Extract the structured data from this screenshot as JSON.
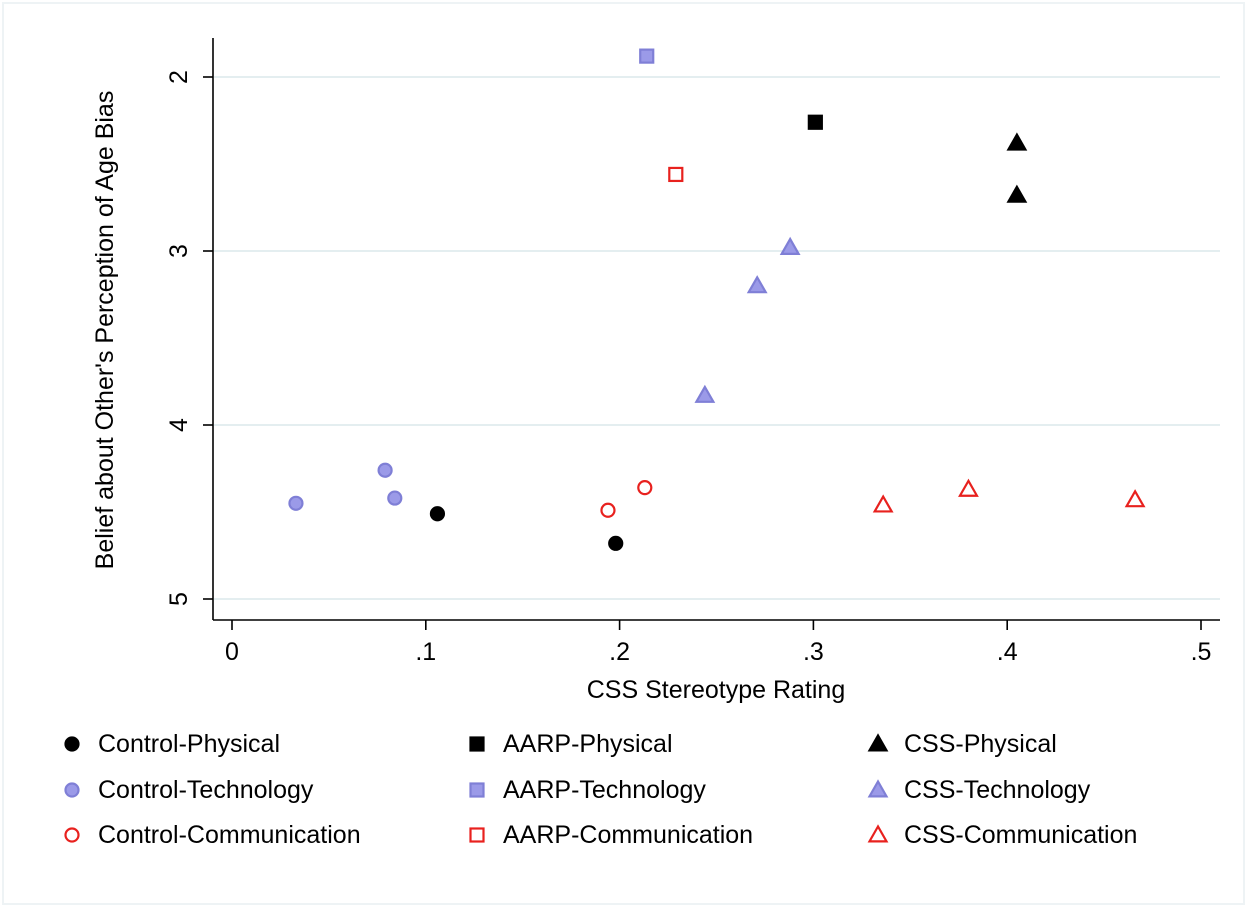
{
  "chart_data": {
    "type": "scatter",
    "title": "",
    "xlabel": "CSS Stereotype Rating",
    "ylabel": "Belief about Other's Perception of Age Bias",
    "xlim": [
      0,
      0.5
    ],
    "ylim": [
      2,
      5
    ],
    "y_reversed": true,
    "x_ticks": [
      0,
      0.1,
      0.2,
      0.3,
      0.4,
      0.5
    ],
    "x_tick_labels": [
      "0",
      ".1",
      ".2",
      ".3",
      ".4",
      ".5"
    ],
    "y_ticks": [
      2,
      3,
      4,
      5
    ],
    "y_tick_labels": [
      "2",
      "3",
      "4",
      "5"
    ],
    "grid": true,
    "legend_position": "bottom",
    "series": [
      {
        "name": "Control-Physical",
        "marker": "circle",
        "fill": "#000000",
        "stroke": "#000000",
        "points": [
          [
            0.106,
            4.51
          ],
          [
            0.198,
            4.68
          ]
        ]
      },
      {
        "name": "AARP-Physical",
        "marker": "square",
        "fill": "#000000",
        "stroke": "#000000",
        "points": [
          [
            0.301,
            2.26
          ]
        ]
      },
      {
        "name": "CSS-Physical",
        "marker": "triangle",
        "fill": "#000000",
        "stroke": "#000000",
        "points": [
          [
            0.405,
            2.38
          ],
          [
            0.405,
            2.68
          ]
        ]
      },
      {
        "name": "Control-Technology",
        "marker": "circle",
        "fill": "#9b9ae8",
        "stroke": "#7f7fd6",
        "points": [
          [
            0.033,
            4.45
          ],
          [
            0.079,
            4.26
          ],
          [
            0.084,
            4.42
          ]
        ]
      },
      {
        "name": "AARP-Technology",
        "marker": "square",
        "fill": "#9b9ae8",
        "stroke": "#7f7fd6",
        "points": [
          [
            0.214,
            1.88
          ]
        ]
      },
      {
        "name": "CSS-Technology",
        "marker": "triangle",
        "fill": "#9b9ae8",
        "stroke": "#7f7fd6",
        "points": [
          [
            0.244,
            3.83
          ],
          [
            0.271,
            3.2
          ],
          [
            0.288,
            2.98
          ]
        ]
      },
      {
        "name": "Control-Communication",
        "marker": "circle",
        "fill": "none",
        "stroke": "#e8211e",
        "points": [
          [
            0.194,
            4.49
          ],
          [
            0.213,
            4.36
          ]
        ]
      },
      {
        "name": "AARP-Communication",
        "marker": "square",
        "fill": "none",
        "stroke": "#e8211e",
        "points": [
          [
            0.229,
            2.56
          ]
        ]
      },
      {
        "name": "CSS-Communication",
        "marker": "triangle",
        "fill": "none",
        "stroke": "#e8211e",
        "points": [
          [
            0.336,
            4.46
          ],
          [
            0.38,
            4.37
          ],
          [
            0.466,
            4.43
          ]
        ]
      }
    ]
  }
}
